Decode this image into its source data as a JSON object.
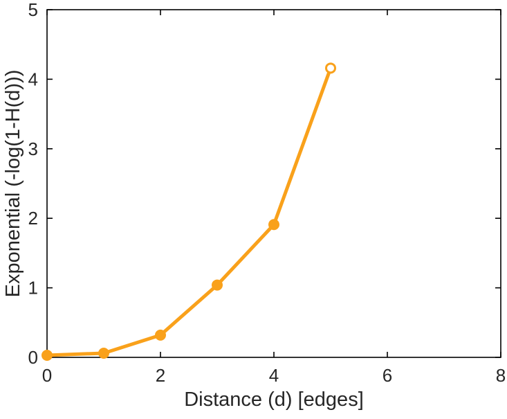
{
  "chart_data": {
    "type": "line",
    "title": "",
    "xlabel": "Distance (d) [edges]",
    "ylabel": "Exponential (-log(1-H(d)))",
    "x": [
      0,
      1,
      2,
      3,
      4,
      5
    ],
    "y": [
      0.03,
      0.06,
      0.32,
      1.04,
      1.91,
      4.16
    ],
    "xlim": [
      0,
      8
    ],
    "ylim": [
      0,
      5
    ],
    "xticks": [
      0,
      2,
      4,
      6,
      8
    ],
    "yticks": [
      0,
      1,
      2,
      3,
      4,
      5
    ],
    "grid": false,
    "legend": null,
    "line_color": "#F9A11B",
    "axis_color": "#000000",
    "tick_label_color": "#262626",
    "marker": "circle",
    "open_marker_index": 5,
    "line_width": 5
  }
}
